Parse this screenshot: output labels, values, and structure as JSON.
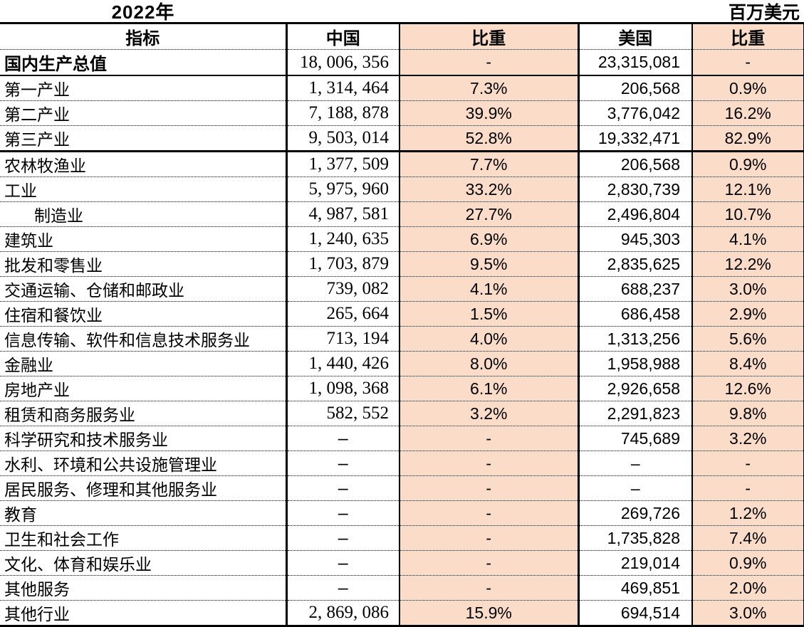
{
  "title": {
    "year": "2022年",
    "unit": "百万美元"
  },
  "table": {
    "headers": {
      "indicator": "指标",
      "china": "中国",
      "china_share": "比重",
      "usa": "美国",
      "usa_share": "比重"
    },
    "rows": [
      {
        "indicator": "国内生产总值",
        "china": "18, 006, 356",
        "china_share": "-",
        "usa": "23,315,081",
        "usa_share": "-",
        "bold": true,
        "sep": "solid2"
      },
      {
        "indicator": "第一产业",
        "china": "1, 314, 464",
        "china_share": "7.3%",
        "usa": "206,568",
        "usa_share": "0.9%"
      },
      {
        "indicator": "第二产业",
        "china": "7, 188, 878",
        "china_share": "39.9%",
        "usa": "3,776,042",
        "usa_share": "16.2%"
      },
      {
        "indicator": "第三产业",
        "china": "9, 503, 014",
        "china_share": "52.8%",
        "usa": "19,332,471",
        "usa_share": "82.9%",
        "sep": "solid3"
      },
      {
        "indicator": "农林牧渔业",
        "china": "1, 377, 509",
        "china_share": "7.7%",
        "usa": "206,568",
        "usa_share": "0.9%"
      },
      {
        "indicator": "工业",
        "china": "5, 975, 960",
        "china_share": "33.2%",
        "usa": "2,830,739",
        "usa_share": "12.1%"
      },
      {
        "indicator": "制造业",
        "china": "4, 987, 581",
        "china_share": "27.7%",
        "usa": "2,496,804",
        "usa_share": "10.7%",
        "indent": true
      },
      {
        "indicator": "建筑业",
        "china": "1, 240, 635",
        "china_share": "6.9%",
        "usa": "945,303",
        "usa_share": "4.1%"
      },
      {
        "indicator": "批发和零售业",
        "china": "1, 703, 879",
        "china_share": "9.5%",
        "usa": "2,835,625",
        "usa_share": "12.2%"
      },
      {
        "indicator": "交通运输、仓储和邮政业",
        "china": "739, 082",
        "china_share": "4.1%",
        "usa": "688,237",
        "usa_share": "3.0%"
      },
      {
        "indicator": "住宿和餐饮业",
        "china": "265, 664",
        "china_share": "1.5%",
        "usa": "686,458",
        "usa_share": "2.9%"
      },
      {
        "indicator": "信息传输、软件和信息技术服务业",
        "china": "713, 194",
        "china_share": "4.0%",
        "usa": "1,313,256",
        "usa_share": "5.6%"
      },
      {
        "indicator": "金融业",
        "china": "1, 440, 426",
        "china_share": "8.0%",
        "usa": "1,958,988",
        "usa_share": "8.4%"
      },
      {
        "indicator": "房地产业",
        "china": "1, 098, 368",
        "china_share": "6.1%",
        "usa": "2,926,658",
        "usa_share": "12.6%"
      },
      {
        "indicator": "租赁和商务服务业",
        "china": "582, 552",
        "china_share": "3.2%",
        "usa": "2,291,823",
        "usa_share": "9.8%"
      },
      {
        "indicator": "科学研究和技术服务业",
        "china": "–",
        "china_share": "-",
        "usa": "745,689",
        "usa_share": "3.2%"
      },
      {
        "indicator": "水利、环境和公共设施管理业",
        "china": "–",
        "china_share": "-",
        "usa": "–",
        "usa_share": "-"
      },
      {
        "indicator": "居民服务、修理和其他服务业",
        "china": "–",
        "china_share": "-",
        "usa": "–",
        "usa_share": "-"
      },
      {
        "indicator": "教育",
        "china": "–",
        "china_share": "-",
        "usa": "269,726",
        "usa_share": "1.2%"
      },
      {
        "indicator": "卫生和社会工作",
        "china": "–",
        "china_share": "-",
        "usa": "1,735,828",
        "usa_share": "7.4%"
      },
      {
        "indicator": "文化、体育和娱乐业",
        "china": "–",
        "china_share": "-",
        "usa": "219,014",
        "usa_share": "0.9%"
      },
      {
        "indicator": "其他服务",
        "china": "–",
        "china_share": "-",
        "usa": "469,851",
        "usa_share": "2.0%"
      },
      {
        "indicator": "其他行业",
        "china": "2, 869, 086",
        "china_share": "15.9%",
        "usa": "694,514",
        "usa_share": "3.0%"
      }
    ]
  },
  "colors": {
    "share_column_bg": "#FADCC8",
    "border": "#000000"
  }
}
